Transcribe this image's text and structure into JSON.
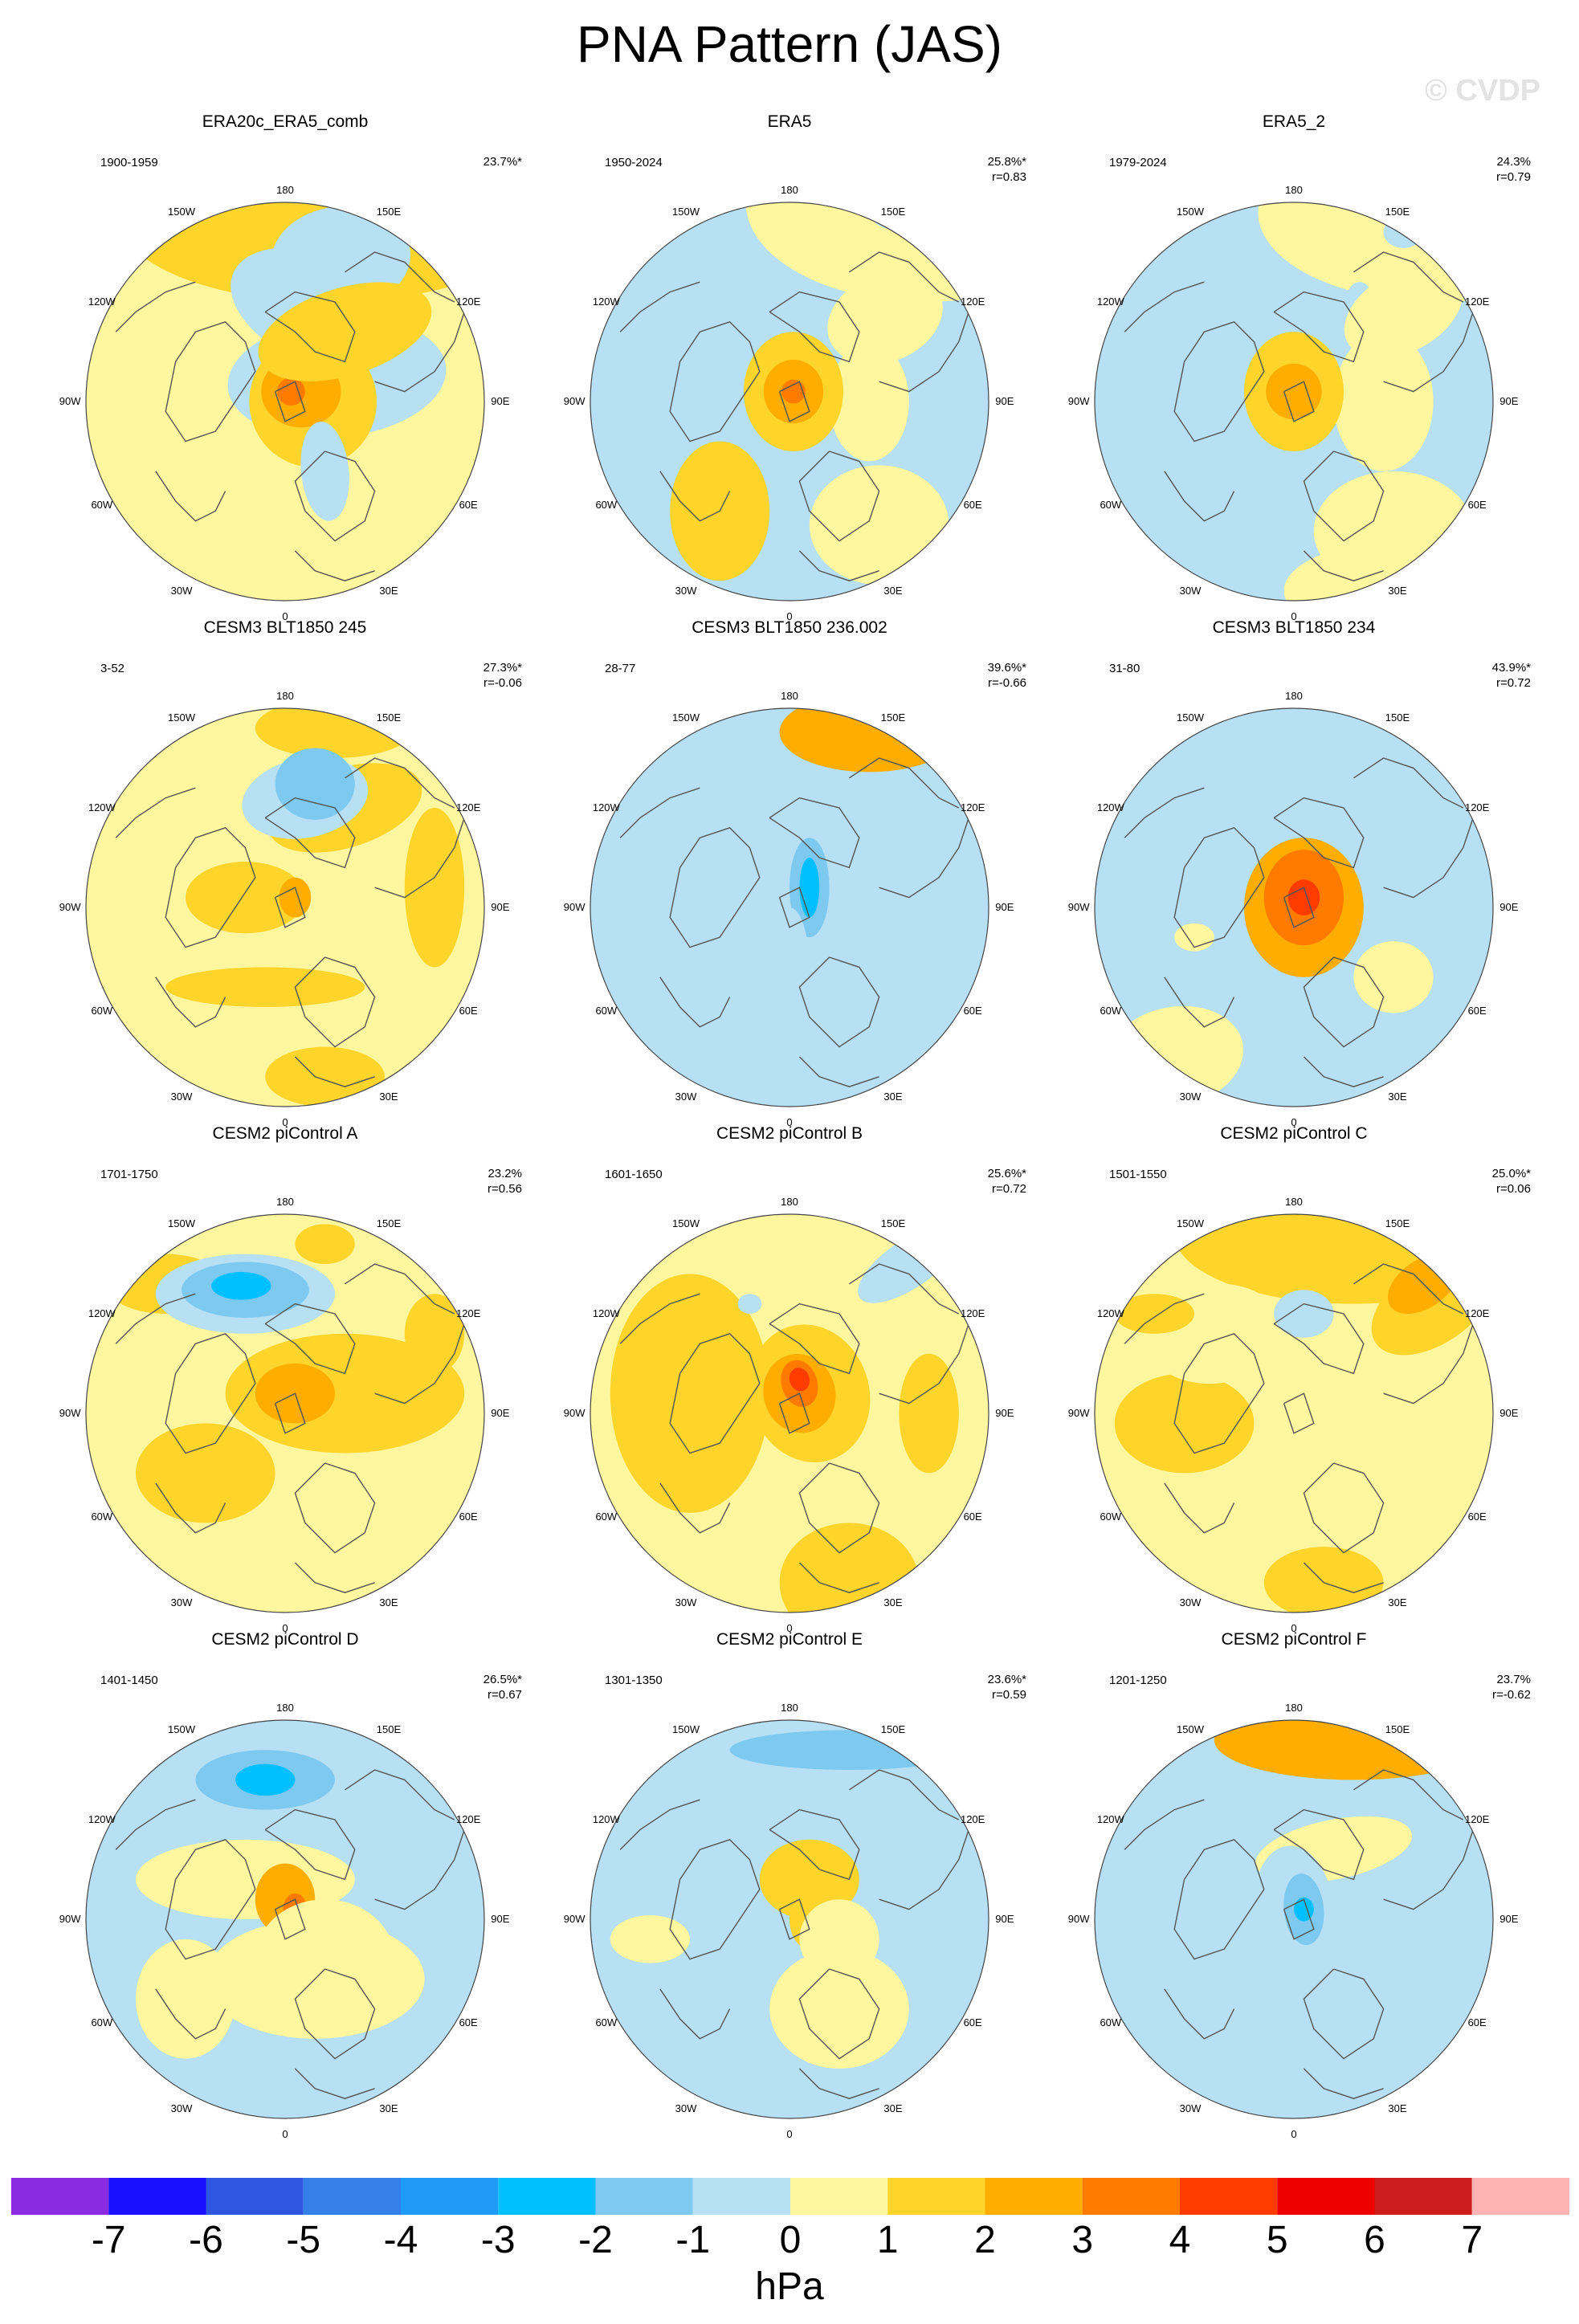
{
  "title": "PNA Pattern (JAS)",
  "watermark": "© CVDP",
  "colorbar": {
    "units": "hPa",
    "ticks": [
      "-7",
      "-6",
      "-5",
      "-4",
      "-3",
      "-2",
      "-1",
      "0",
      "1",
      "2",
      "3",
      "4",
      "5",
      "6",
      "7"
    ],
    "colors": [
      "#8a2be2",
      "#1a10ff",
      "#2f56e0",
      "#3580e8",
      "#1f9bf5",
      "#02c0ff",
      "#7ec9f0",
      "#b8e0f4",
      "#fff7a0",
      "#ffd42b",
      "#ffad00",
      "#ff7b00",
      "#ff3c00",
      "#ee0000",
      "#cc1c1c",
      "#ffb3b3"
    ]
  },
  "map_labels": {
    "top": "180",
    "bottom": "0",
    "ul1": "150W",
    "ul2": "120W",
    "left": "90W",
    "ll2": "60W",
    "ll1": "30W",
    "ur1": "150E",
    "ur2": "120E",
    "right": "90E",
    "lr2": "60E",
    "lr1": "30E"
  },
  "panels": [
    {
      "title": "ERA20c_ERA5_comb",
      "period": "1900-1959",
      "pct": "23.7%*",
      "r": "",
      "field": {
        "bg": 0,
        "blobs": [
          [
            0.22,
            0.92,
            1.05,
            0.42,
            0,
            1
          ],
          [
            0.28,
            0.72,
            0.35,
            0.26,
            0.1,
            -1
          ],
          [
            0.2,
            0.45,
            0.5,
            0.28,
            -0.4,
            -1
          ],
          [
            0.26,
            0.12,
            0.55,
            0.3,
            0.1,
            -1
          ],
          [
            0.14,
            0.0,
            0.32,
            0.33,
            0,
            1
          ],
          [
            0.08,
            0.05,
            0.2,
            0.18,
            0,
            2
          ],
          [
            0.03,
            0.05,
            0.07,
            0.07,
            0,
            3
          ],
          [
            0.2,
            -0.35,
            0.12,
            0.25,
            0.1,
            -1
          ],
          [
            0.3,
            0.35,
            0.45,
            0.22,
            0.3,
            1
          ]
        ]
      }
    },
    {
      "title": "ERA5",
      "period": "1950-2024",
      "pct": "25.8%*",
      "r": "r=0.83",
      "field": {
        "bg": 1,
        "blobs": [
          [
            0.68,
            1.0,
            0.9,
            0.5,
            0,
            0
          ],
          [
            0.62,
            0.92,
            0.2,
            0.07,
            0,
            -1
          ],
          [
            0.48,
            0.42,
            0.3,
            0.22,
            0.4,
            0
          ],
          [
            0.4,
            0.0,
            0.2,
            0.3,
            0,
            0
          ],
          [
            0.45,
            -0.62,
            0.35,
            0.3,
            0,
            0
          ],
          [
            0.5,
            1.3,
            1.1,
            0.3,
            0,
            0
          ],
          [
            0.02,
            0.05,
            0.25,
            0.3,
            0,
            1
          ],
          [
            0.02,
            0.05,
            0.15,
            0.16,
            0,
            2
          ],
          [
            0.02,
            0.05,
            0.06,
            0.06,
            0,
            3
          ],
          [
            -0.35,
            -0.55,
            0.25,
            0.35,
            0,
            1
          ]
        ]
      }
    },
    {
      "title": "ERA5_2",
      "period": "1979-2024",
      "pct": "24.3%",
      "r": "r=0.79",
      "field": {
        "bg": 1,
        "blobs": [
          [
            0.72,
            0.95,
            0.9,
            0.45,
            0,
            0
          ],
          [
            0.55,
            0.85,
            0.1,
            0.08,
            0,
            -1
          ],
          [
            0.33,
            0.5,
            0.07,
            0.1,
            0,
            -1
          ],
          [
            0.55,
            0.45,
            0.32,
            0.2,
            0.5,
            0
          ],
          [
            0.45,
            0.0,
            0.25,
            0.35,
            0,
            0
          ],
          [
            0.5,
            -0.65,
            0.4,
            0.3,
            0,
            0
          ],
          [
            0.0,
            0.05,
            0.25,
            0.3,
            0,
            1
          ],
          [
            0.0,
            0.05,
            0.14,
            0.14,
            0,
            2
          ],
          [
            0.55,
            -0.95,
            0.6,
            0.25,
            0,
            0
          ]
        ]
      }
    },
    {
      "title": "CESM3 BLT1850 245",
      "period": "3-52",
      "pct": "27.3%*",
      "r": "r=-0.06",
      "field": {
        "bg": 0,
        "blobs": [
          [
            0.3,
            0.5,
            0.4,
            0.2,
            0.3,
            1
          ],
          [
            0.25,
            0.9,
            0.4,
            0.15,
            0,
            1
          ],
          [
            0.1,
            0.55,
            0.32,
            0.2,
            0.2,
            -1
          ],
          [
            0.15,
            0.62,
            0.2,
            0.18,
            0,
            -2
          ],
          [
            -0.2,
            0.05,
            0.3,
            0.18,
            0,
            1
          ],
          [
            0.05,
            0.05,
            0.08,
            0.1,
            0,
            2
          ],
          [
            -0.1,
            -0.4,
            0.5,
            0.1,
            0,
            1
          ],
          [
            0.75,
            0.1,
            0.15,
            0.4,
            0,
            1
          ],
          [
            0.2,
            -0.85,
            0.3,
            0.15,
            0,
            1
          ]
        ]
      }
    },
    {
      "title": "CESM3 BLT1850 236.002",
      "period": "28-77",
      "pct": "39.6%*",
      "r": "r=-0.66",
      "field": {
        "bg": 1,
        "blobs": [
          [
            0.1,
            0.05,
            0.25,
            0.45,
            0.1,
            -1
          ],
          [
            0.1,
            0.1,
            0.1,
            0.25,
            0,
            -2
          ],
          [
            0.1,
            0.1,
            0.05,
            0.15,
            0,
            -3
          ],
          [
            0.55,
            0.0,
            0.35,
            0.4,
            0,
            -1
          ],
          [
            -0.45,
            -0.2,
            0.4,
            0.35,
            0,
            -1
          ],
          [
            -0.45,
            -0.75,
            0.6,
            0.3,
            0,
            -1
          ],
          [
            -0.3,
            0.6,
            0.55,
            0.2,
            0.2,
            -1
          ],
          [
            0.0,
            -0.3,
            0.1,
            0.3,
            0,
            -1
          ],
          [
            0.4,
            0.88,
            0.45,
            0.2,
            0,
            2
          ]
        ]
      }
    },
    {
      "title": "CESM3 BLT1850 234",
      "period": "31-80",
      "pct": "43.9%*",
      "r": "r=0.72",
      "field": {
        "bg": 1,
        "blobs": [
          [
            0.3,
            0.9,
            0.85,
            0.25,
            0,
            -1
          ],
          [
            0.8,
            0.6,
            0.35,
            0.12,
            0.5,
            -1
          ],
          [
            0.05,
            0.0,
            0.3,
            0.35,
            0,
            2
          ],
          [
            0.05,
            0.05,
            0.2,
            0.24,
            0,
            3
          ],
          [
            0.05,
            0.05,
            0.08,
            0.09,
            0,
            4
          ],
          [
            0.5,
            -0.35,
            0.2,
            0.18,
            0,
            0
          ],
          [
            -0.5,
            -0.15,
            0.1,
            0.07,
            0,
            0
          ],
          [
            -0.6,
            -0.75,
            0.35,
            0.25,
            0.2,
            0
          ]
        ]
      }
    },
    {
      "title": "CESM2 piControl A",
      "period": "1701-1750",
      "pct": "23.2%",
      "r": "r=0.56",
      "field": {
        "bg": 0,
        "blobs": [
          [
            0.3,
            0.1,
            0.6,
            0.3,
            0,
            1
          ],
          [
            -0.4,
            -0.3,
            0.35,
            0.25,
            0,
            1
          ],
          [
            0.05,
            0.1,
            0.2,
            0.15,
            0,
            2
          ],
          [
            0.75,
            0.4,
            0.15,
            0.2,
            0,
            1
          ],
          [
            0.2,
            0.85,
            0.15,
            0.1,
            0,
            1
          ],
          [
            -0.6,
            0.65,
            0.3,
            0.15,
            0,
            1
          ],
          [
            -0.2,
            0.6,
            0.45,
            0.2,
            0,
            -1
          ],
          [
            -0.2,
            0.62,
            0.32,
            0.14,
            0,
            -2
          ],
          [
            -0.22,
            0.64,
            0.15,
            0.07,
            0,
            -3
          ]
        ]
      }
    },
    {
      "title": "CESM2 piControl B",
      "period": "1601-1650",
      "pct": "25.6%*",
      "r": "r=0.72",
      "field": {
        "bg": 0,
        "blobs": [
          [
            -0.5,
            0.1,
            0.4,
            0.6,
            0,
            1
          ],
          [
            0.1,
            0.1,
            0.3,
            0.35,
            0.3,
            1
          ],
          [
            0.05,
            0.1,
            0.18,
            0.2,
            0.3,
            2
          ],
          [
            0.05,
            0.15,
            0.09,
            0.12,
            0.3,
            3
          ],
          [
            0.05,
            0.17,
            0.05,
            0.06,
            0.3,
            4
          ],
          [
            0.7,
            0.0,
            0.15,
            0.3,
            0,
            1
          ],
          [
            0.3,
            -0.85,
            0.35,
            0.3,
            0,
            1
          ],
          [
            0.6,
            0.75,
            0.3,
            0.12,
            0.6,
            -1
          ],
          [
            -0.2,
            0.55,
            0.06,
            0.05,
            0,
            -1
          ]
        ]
      }
    },
    {
      "title": "CESM2 piControl C",
      "period": "1501-1550",
      "pct": "25.0%*",
      "r": "r=0.06",
      "field": {
        "bg": 0,
        "blobs": [
          [
            0.3,
            0.9,
            0.9,
            0.35,
            0.0,
            1
          ],
          [
            0.7,
            0.55,
            0.35,
            0.2,
            0.6,
            1
          ],
          [
            0.65,
            0.65,
            0.2,
            0.12,
            0.6,
            2
          ],
          [
            -0.55,
            -0.05,
            0.35,
            0.25,
            0,
            1
          ],
          [
            0.15,
            -0.85,
            0.3,
            0.18,
            0,
            1
          ],
          [
            -0.4,
            0.4,
            0.35,
            0.25,
            0.1,
            0
          ],
          [
            0.05,
            0.5,
            0.15,
            0.12,
            0,
            -1
          ],
          [
            -0.7,
            0.5,
            0.2,
            0.1,
            0,
            1
          ]
        ]
      }
    },
    {
      "title": "CESM2 piControl D",
      "period": "1401-1450",
      "pct": "26.5%*",
      "r": "r=0.67",
      "field": {
        "bg": 1,
        "blobs": [
          [
            -0.1,
            0.7,
            0.55,
            0.25,
            0,
            -1
          ],
          [
            -0.1,
            0.7,
            0.35,
            0.15,
            0,
            -2
          ],
          [
            -0.1,
            0.7,
            0.15,
            0.08,
            0,
            -3
          ],
          [
            -0.2,
            0.2,
            0.55,
            0.2,
            0,
            0
          ],
          [
            0.15,
            -0.3,
            0.55,
            0.3,
            0,
            0
          ],
          [
            -0.5,
            -0.4,
            0.25,
            0.3,
            0,
            0
          ],
          [
            0.0,
            0.1,
            0.15,
            0.18,
            0,
            2
          ],
          [
            0.05,
            0.05,
            0.06,
            0.08,
            0,
            3
          ],
          [
            0.2,
            -0.2,
            0.35,
            0.3,
            0,
            0
          ]
        ]
      }
    },
    {
      "title": "CESM2 piControl E",
      "period": "1301-1350",
      "pct": "23.6%*",
      "r": "r=0.59",
      "field": {
        "bg": 1,
        "blobs": [
          [
            0.3,
            0.85,
            1.0,
            0.25,
            0,
            -1
          ],
          [
            0.3,
            0.85,
            0.6,
            0.1,
            0,
            -2
          ],
          [
            0.25,
            -0.45,
            0.35,
            0.3,
            0,
            0
          ],
          [
            -0.7,
            -0.1,
            0.2,
            0.12,
            0,
            0
          ],
          [
            0.1,
            0.2,
            0.25,
            0.2,
            0,
            1
          ],
          [
            0.1,
            0.0,
            0.1,
            0.15,
            0,
            1
          ],
          [
            0.25,
            -0.1,
            0.2,
            0.2,
            0,
            0
          ]
        ]
      }
    },
    {
      "title": "CESM2 piControl F",
      "period": "1201-1250",
      "pct": "23.7%",
      "r": "r=-0.62",
      "field": {
        "bg": 1,
        "blobs": [
          [
            0.3,
            0.9,
            0.7,
            0.2,
            0,
            2
          ],
          [
            0.2,
            0.35,
            0.4,
            0.15,
            0.2,
            0
          ],
          [
            0.0,
            0.05,
            0.2,
            0.32,
            0.1,
            -1
          ],
          [
            0.05,
            0.05,
            0.1,
            0.18,
            0.1,
            -2
          ],
          [
            0.05,
            0.05,
            0.05,
            0.06,
            0,
            -3
          ],
          [
            -0.55,
            -0.35,
            0.28,
            0.4,
            0,
            -1
          ],
          [
            0.5,
            -0.2,
            0.2,
            0.3,
            0,
            -1
          ],
          [
            -0.6,
            0.4,
            0.15,
            0.2,
            0,
            -1
          ],
          [
            0.25,
            -0.65,
            0.15,
            0.1,
            0,
            -1
          ]
        ]
      }
    }
  ]
}
